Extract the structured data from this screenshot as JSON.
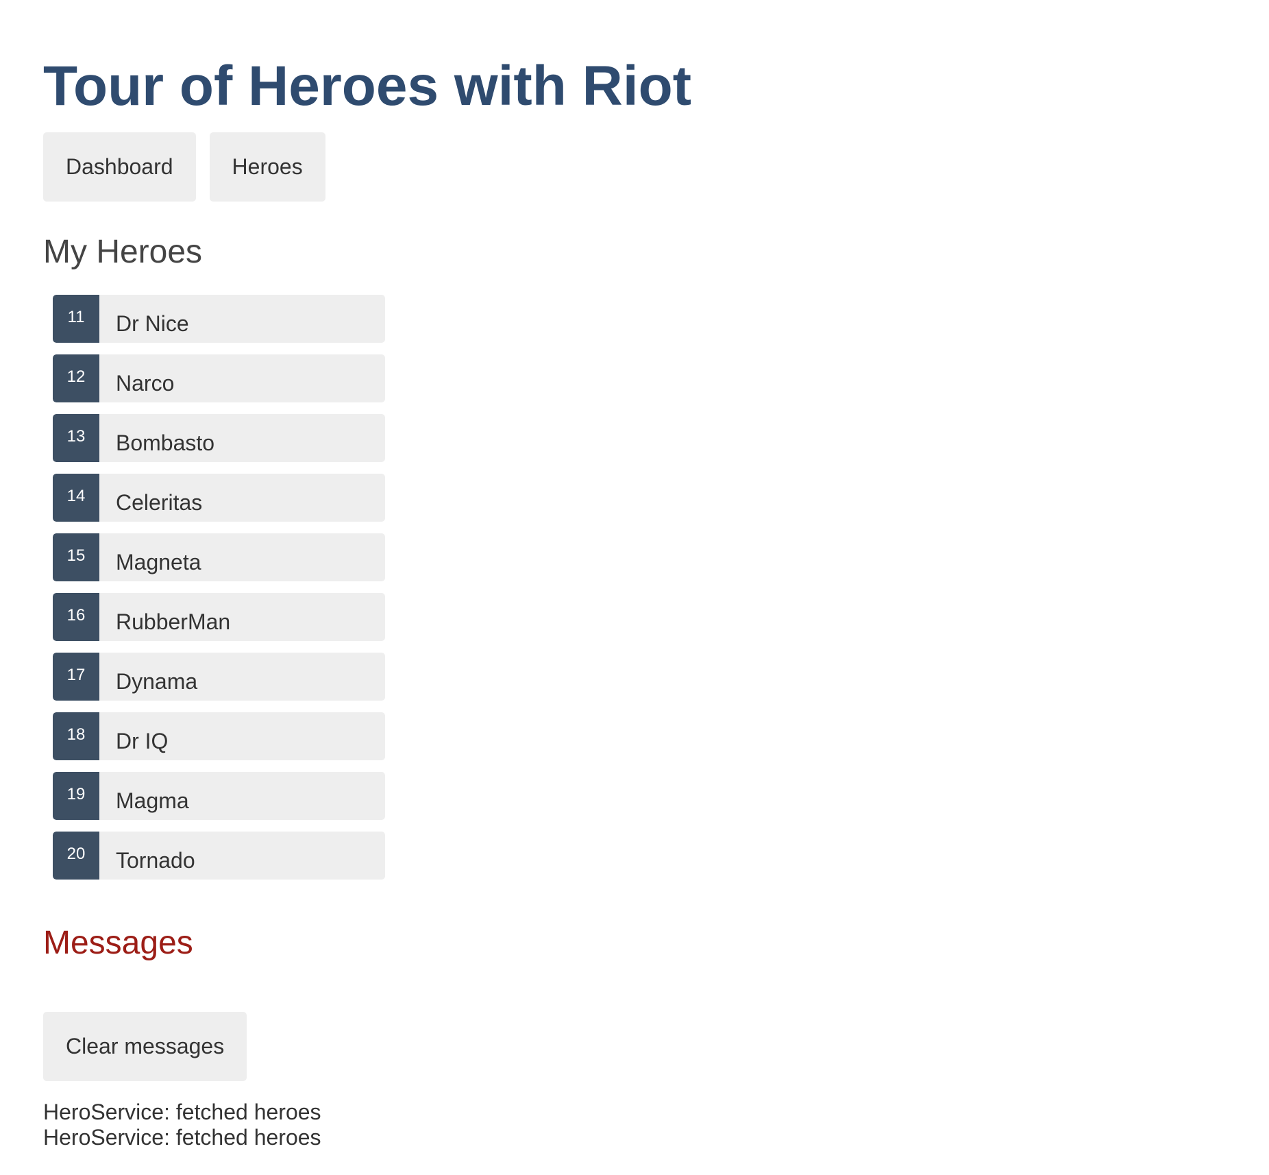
{
  "app": {
    "title": "Tour of Heroes with Riot"
  },
  "nav": {
    "items": [
      {
        "label": "Dashboard"
      },
      {
        "label": "Heroes"
      }
    ]
  },
  "heroes_section": {
    "title": "My Heroes",
    "heroes": [
      {
        "id": "11",
        "name": "Dr Nice"
      },
      {
        "id": "12",
        "name": "Narco"
      },
      {
        "id": "13",
        "name": "Bombasto"
      },
      {
        "id": "14",
        "name": "Celeritas"
      },
      {
        "id": "15",
        "name": "Magneta"
      },
      {
        "id": "16",
        "name": "RubberMan"
      },
      {
        "id": "17",
        "name": "Dynama"
      },
      {
        "id": "18",
        "name": "Dr IQ"
      },
      {
        "id": "19",
        "name": "Magma"
      },
      {
        "id": "20",
        "name": "Tornado"
      }
    ]
  },
  "messages": {
    "title": "Messages",
    "clear_label": "Clear messages",
    "items": [
      "HeroService: fetched heroes",
      "HeroService: fetched heroes"
    ]
  },
  "colors": {
    "title": "#2f4b6f",
    "badge": "#3d4f63",
    "messages_title": "#9c1d16",
    "button_bg": "#eeeeee"
  }
}
